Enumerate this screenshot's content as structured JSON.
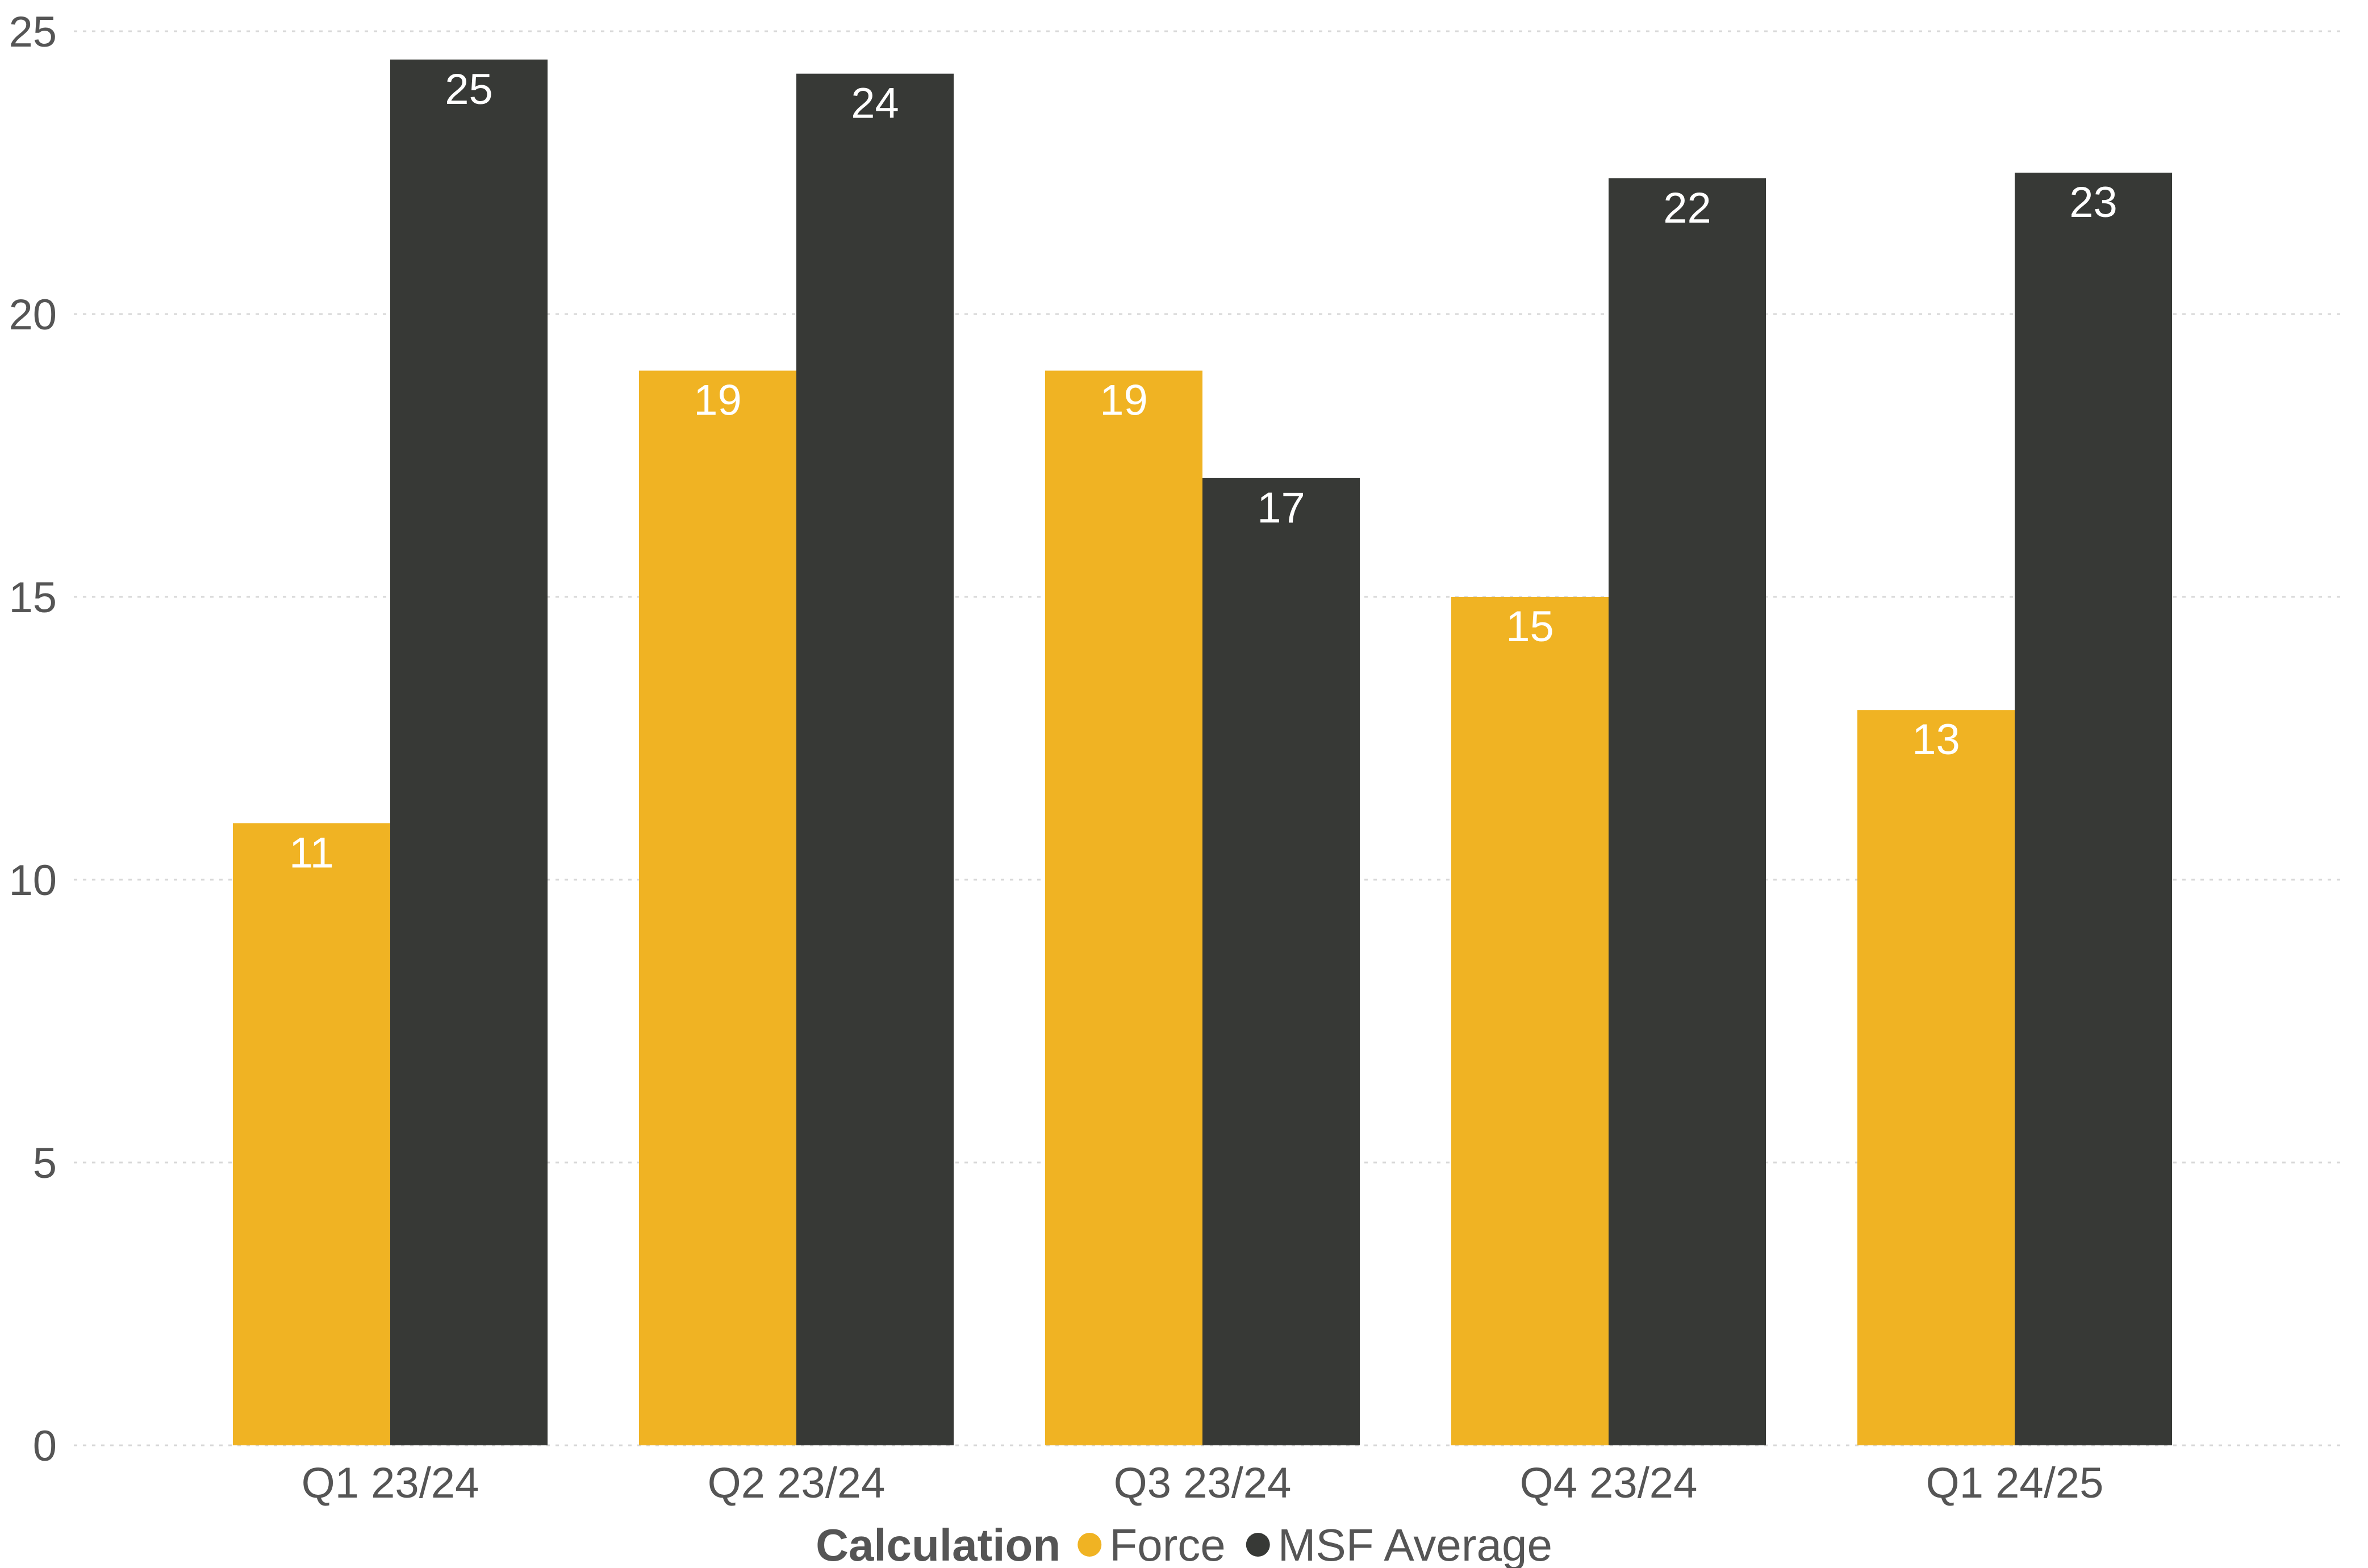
{
  "chart_data": {
    "type": "bar",
    "categories": [
      "Q1 23/24",
      "Q2 23/24",
      "Q3 23/24",
      "Q4 23/24",
      "Q1 24/25"
    ],
    "series": [
      {
        "name": "Force",
        "color": "#f0b323",
        "values": [
          11,
          19,
          19,
          15,
          13
        ],
        "labels": [
          "11",
          "19",
          "19",
          "15",
          "13"
        ]
      },
      {
        "name": "MSF Average",
        "color": "#373936",
        "values": [
          24.5,
          24.25,
          17.1,
          22.4,
          22.5
        ],
        "labels": [
          "25",
          "24",
          "17",
          "22",
          "23"
        ]
      }
    ],
    "ylim": [
      0,
      25
    ],
    "yticks": [
      0,
      5,
      10,
      15,
      20,
      25
    ],
    "grid": true,
    "legend": {
      "title": "Calculation",
      "placement": "bottom-center"
    },
    "title": "",
    "xlabel": "",
    "ylabel": ""
  }
}
